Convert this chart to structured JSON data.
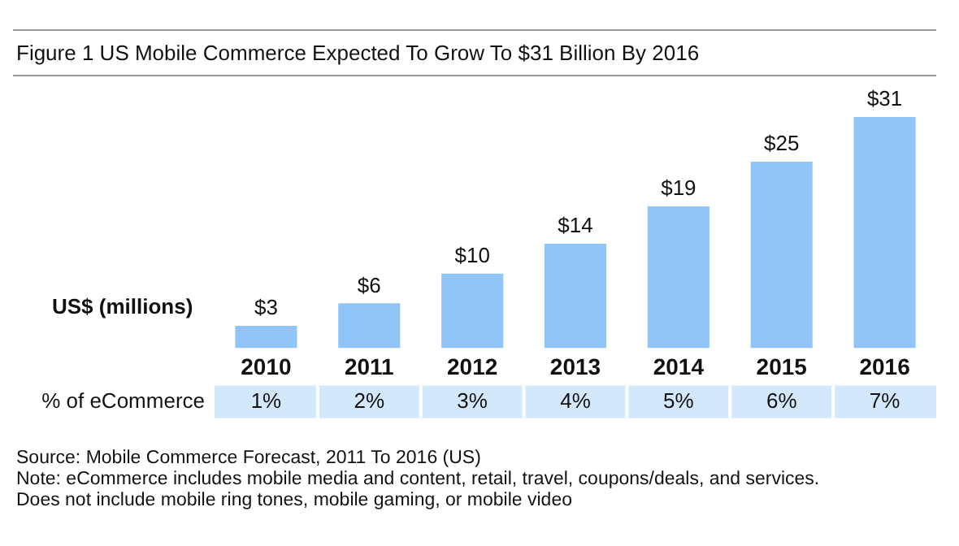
{
  "chart_data": {
    "type": "bar",
    "title": "Figure 1 US Mobile Commerce Expected To Grow To $31 Billion By 2016",
    "ylabel": "US$ (millions)",
    "categories": [
      "2010",
      "2011",
      "2012",
      "2013",
      "2014",
      "2015",
      "2016"
    ],
    "values": [
      3,
      6,
      10,
      14,
      19,
      25,
      31
    ],
    "color": "#92c5f7",
    "value_labels": [
      "$3",
      "$6",
      "$10",
      "$14",
      "$19",
      "$25",
      "$31"
    ],
    "grid": false,
    "legend": false,
    "annotations": [
      "% of eCommerce",
      "1%",
      "2%",
      "3%",
      "4%",
      "5%",
      "6%",
      "7%",
      "Source: Mobile Commerce Forecast, 2011 To 2016 (US)",
      "Note: eCommerce includes mobile media and content, retail, travel, coupons/deals, and services.",
      "Does not include mobile ring tones, mobile gaming, or mobile video"
    ]
  }
}
